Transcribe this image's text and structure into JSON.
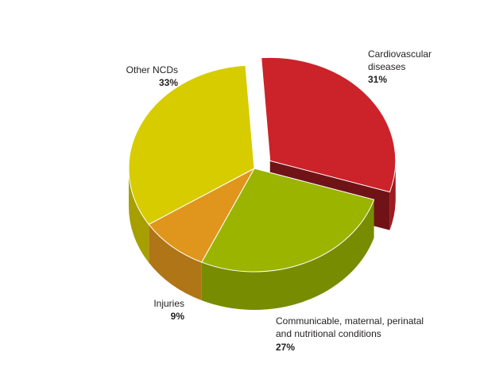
{
  "chart_data": {
    "type": "pie",
    "title": "",
    "legend": "none",
    "slices": [
      {
        "label_lines": [
          "Cardiovascular",
          "diseases"
        ],
        "value": 31,
        "value_label": "31%",
        "color": "#cc2229",
        "exploded": true
      },
      {
        "label_lines": [
          "Communicable, maternal, perinatal",
          "and nutritional conditions"
        ],
        "value": 27,
        "value_label": "27%",
        "color": "#9ab400",
        "exploded": false
      },
      {
        "label_lines": [
          "Injuries"
        ],
        "value": 9,
        "value_label": "9%",
        "color": "#e0961c",
        "exploded": false
      },
      {
        "label_lines": [
          "Other NCDs"
        ],
        "value": 33,
        "value_label": "33%",
        "color": "#d6cc00",
        "exploded": false
      }
    ]
  }
}
